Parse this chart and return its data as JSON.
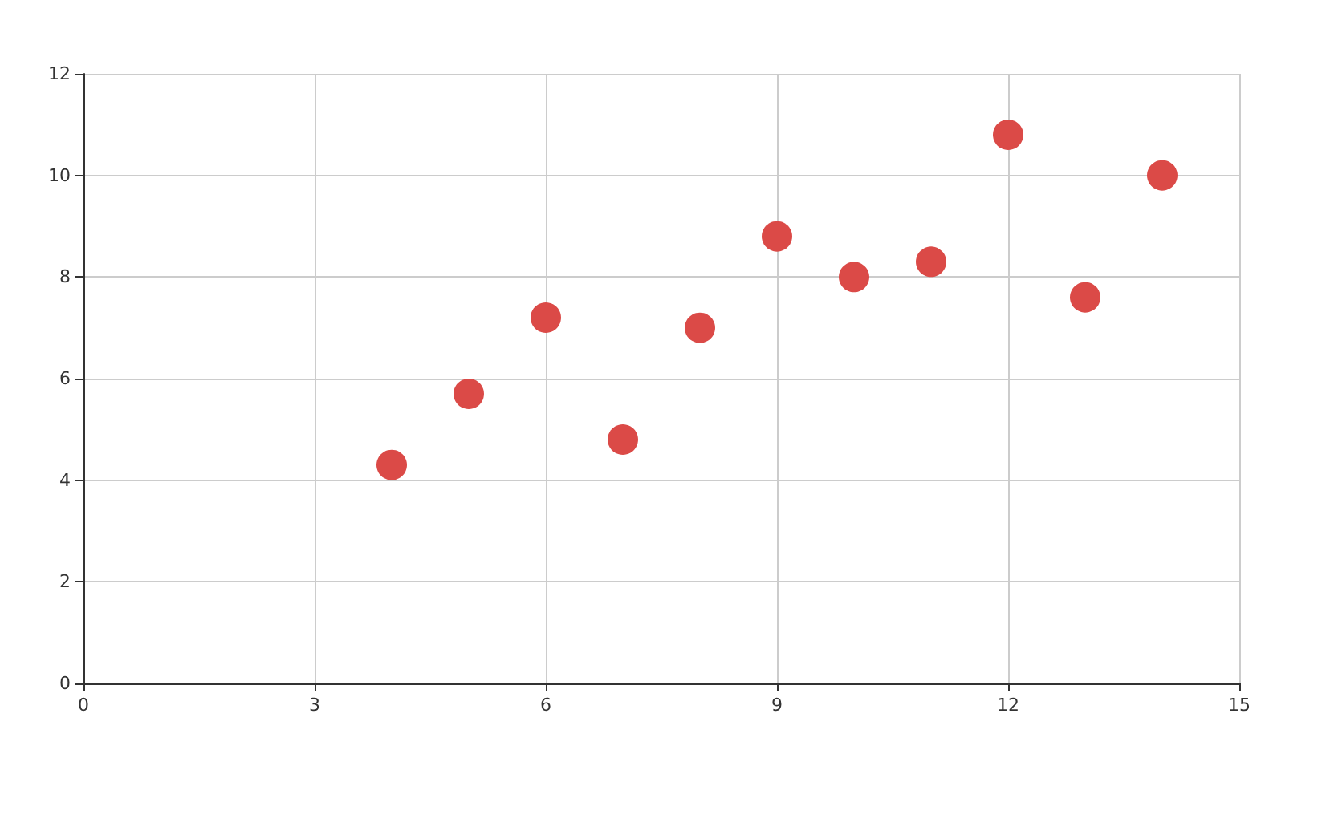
{
  "chart_data": {
    "type": "scatter",
    "x": [
      4,
      5,
      6,
      7,
      8,
      9,
      10,
      11,
      12,
      13,
      14
    ],
    "values": [
      4.3,
      5.7,
      7.2,
      4.8,
      7.0,
      8.8,
      8.0,
      8.3,
      10.8,
      7.6,
      10.0
    ],
    "color": "#db4a47",
    "marker": "circle",
    "xlim": [
      0,
      15
    ],
    "xticks": [
      0,
      3,
      6,
      9,
      12,
      15
    ],
    "ylim": [
      0,
      12
    ],
    "yticks": [
      0,
      2,
      4,
      6,
      8,
      10,
      12
    ],
    "grid": true
  }
}
